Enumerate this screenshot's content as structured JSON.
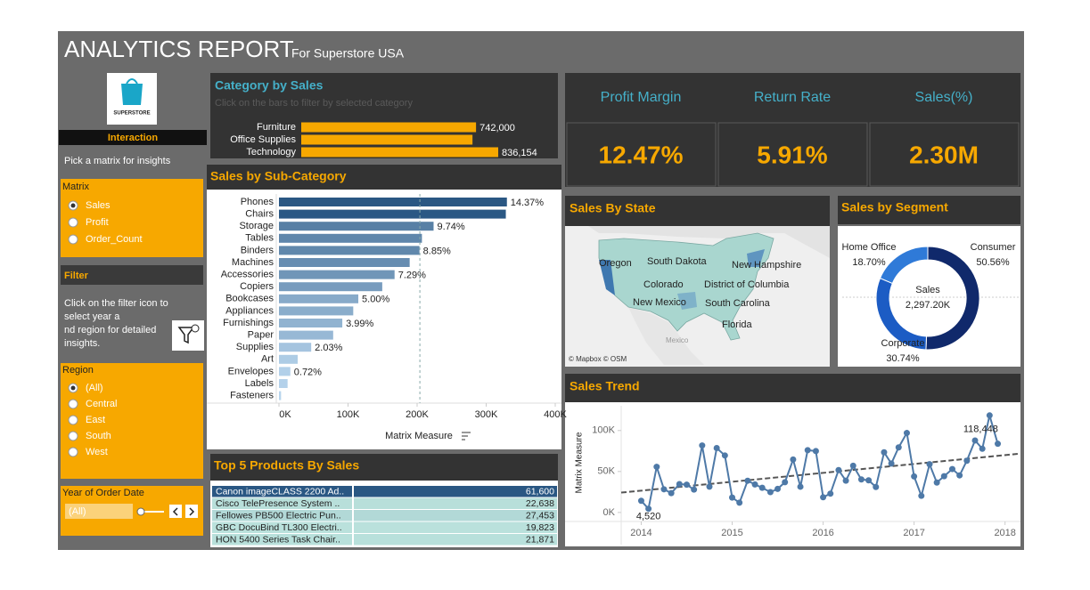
{
  "header": {
    "title": "ANALYTICS REPORT",
    "subtitle": "For Superstore USA"
  },
  "sidebar": {
    "logo": "SUPERSTORE",
    "interaction": "Interaction",
    "prompt": "Pick a matrix for insights",
    "matrix": {
      "title": "Matrix",
      "options": [
        "Sales",
        "Profit",
        "Order_Count"
      ],
      "selected": 0
    },
    "filter": {
      "title": "Filter",
      "lines": [
        "Click on the filter icon to",
        "select year a",
        "nd region for detailed",
        "insights."
      ]
    },
    "region": {
      "title": "Region",
      "options": [
        "(All)",
        "Central",
        "East",
        "South",
        "West"
      ],
      "selected": 0
    },
    "year": {
      "title": "Year of Order Date",
      "value": "(All)"
    }
  },
  "kpis": [
    {
      "label": "Profit Margin",
      "value": "12.47%"
    },
    {
      "label": "Return Rate",
      "value": "5.91%"
    },
    {
      "label": "Sales(%)",
      "value": "2.30M"
    }
  ],
  "map": {
    "title": "Sales  By State",
    "labels": [
      "Oregon",
      "South Dakota",
      "New Hampshire",
      "Colorado",
      "District of Columbia",
      "New Mexico",
      "South Carolina",
      "Florida",
      "Mexico"
    ],
    "credit": "© Mapbox © OSM"
  },
  "chart_data": [
    {
      "type": "hbar",
      "title": "Category by  Sales",
      "subtitle": "Click on the bars to filter by selected category",
      "categories": [
        "Furniture",
        "Office Supplies",
        "Technology"
      ],
      "values": [
        742000,
        727000,
        836154
      ],
      "value_labels": [
        "742,000",
        null,
        "836,154"
      ],
      "color": "#f7a800"
    },
    {
      "type": "hbar-axis",
      "title": "Sales  by Sub-Category",
      "categories": [
        "Phones",
        "Chairs",
        "Storage",
        "Tables",
        "Binders",
        "Machines",
        "Accessories",
        "Copiers",
        "Bookcases",
        "Appliances",
        "Furnishings",
        "Paper",
        "Supplies",
        "Art",
        "Envelopes",
        "Labels",
        "Fasteners"
      ],
      "values": [
        330007,
        328449,
        223844,
        206966,
        203413,
        189239,
        167380,
        149528,
        114880,
        107532,
        91705,
        78479,
        46674,
        27119,
        16476,
        12486,
        3024
      ],
      "share_labels": [
        "14.37%",
        null,
        "9.74%",
        null,
        "8.85%",
        null,
        "7.29%",
        null,
        "5.00%",
        null,
        "3.99%",
        null,
        "2.03%",
        null,
        "0.72%",
        null,
        null
      ],
      "xlim": [
        0,
        400000
      ],
      "xticks": [
        {
          "value": 0,
          "label": "0K"
        },
        {
          "value": 100000,
          "label": "100K"
        },
        {
          "value": 200000,
          "label": "200K"
        },
        {
          "value": 300000,
          "label": "300K"
        },
        {
          "value": 400000,
          "label": "400K"
        }
      ],
      "x_label": "Matrix Measure",
      "reference_line": 204000
    },
    {
      "type": "highlight-table",
      "title": "Top 5 Products By Sales",
      "categories": [
        "Canon imageCLASS 2200 Ad..",
        "Cisco TelePresence System ..",
        "Fellowes PB500 Electric Pun..",
        "GBC DocuBind TL300 Electri..",
        "HON 5400 Series Task Chair.."
      ],
      "values": [
        61600,
        22638,
        27453,
        19823,
        21871
      ],
      "value_labels": [
        "61,600",
        "22,638",
        "27,453",
        "19,823",
        "21,871"
      ]
    },
    {
      "type": "donut",
      "title": "Sales by Segment",
      "categories": [
        "Consumer",
        "Corporate",
        "Home Office"
      ],
      "values": [
        50.56,
        30.74,
        18.7
      ],
      "value_labels": [
        "50.56%",
        "30.74%",
        "18.70%"
      ],
      "colors": [
        "#10296b",
        "#1c5cc4",
        "#2f7ad8"
      ],
      "center_title": "Sales",
      "center_value": "2,297.20K"
    },
    {
      "type": "line",
      "title": "Sales Trend",
      "x": [
        2014,
        2014.08,
        2014.17,
        2014.25,
        2014.33,
        2014.42,
        2014.5,
        2014.58,
        2014.67,
        2014.75,
        2014.83,
        2014.92,
        2015,
        2015.08,
        2015.17,
        2015.25,
        2015.33,
        2015.42,
        2015.5,
        2015.58,
        2015.67,
        2015.75,
        2015.83,
        2015.92,
        2016,
        2016.08,
        2016.17,
        2016.25,
        2016.33,
        2016.42,
        2016.5,
        2016.58,
        2016.67,
        2016.75,
        2016.83,
        2016.92,
        2017,
        2017.08,
        2017.17,
        2017.25,
        2017.33,
        2017.42,
        2017.5,
        2017.58,
        2017.67,
        2017.75,
        2017.83,
        2017.92
      ],
      "values": [
        14237,
        4520,
        55691,
        28295,
        23648,
        34595,
        33946,
        27909,
        81777,
        31453,
        78629,
        69546,
        18174,
        11951,
        38726,
        34195,
        30132,
        24797,
        28765,
        36898,
        64596,
        31405,
        75973,
        74920,
        18542,
        22979,
        51716,
        38750,
        56988,
        40344,
        39262,
        31115,
        73410,
        59688,
        79412,
        96999,
        43971,
        20301,
        58872,
        36522,
        44261,
        52982,
        45264,
        63121,
        87867,
        77777,
        118448,
        83829
      ],
      "value_labels": [
        null,
        "4,520",
        null,
        null,
        null,
        null,
        null,
        null,
        null,
        null,
        null,
        null,
        null,
        null,
        null,
        null,
        null,
        null,
        null,
        null,
        null,
        null,
        null,
        null,
        null,
        null,
        null,
        null,
        null,
        null,
        null,
        null,
        null,
        null,
        null,
        null,
        null,
        null,
        null,
        null,
        null,
        null,
        null,
        null,
        null,
        null,
        "118,448",
        null
      ],
      "color": "#4e79a7",
      "xlim": [
        2013.78,
        2018.15
      ],
      "xticks": [
        2014,
        2015,
        2016,
        2017,
        2018
      ],
      "ylim": [
        -11000,
        128000
      ],
      "yticks": [
        {
          "value": 0,
          "label": "0K"
        },
        {
          "value": 50000,
          "label": "50K"
        },
        {
          "value": 100000,
          "label": "100K"
        }
      ],
      "y_label": "Matrix Measure",
      "trend_line": true
    }
  ]
}
